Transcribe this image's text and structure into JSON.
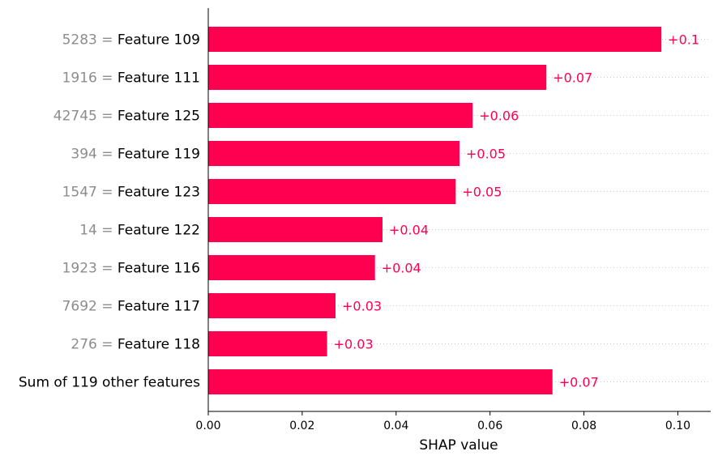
{
  "chart_data": {
    "type": "bar",
    "orientation": "horizontal",
    "xlabel": "SHAP value",
    "xlim": [
      0.0,
      0.107
    ],
    "xticks": [
      0.0,
      0.02,
      0.04,
      0.06,
      0.08,
      0.1
    ],
    "xtick_labels": [
      "0.00",
      "0.02",
      "0.04",
      "0.06",
      "0.08",
      "0.10"
    ],
    "bar_color": "#ff0051",
    "label_color": "#ff0051",
    "feature_value_color": "#8c8c8c",
    "categories": [
      {
        "feature_value": "5283",
        "feature": "Feature 109",
        "value": 0.0965,
        "label": "+0.1"
      },
      {
        "feature_value": "1916",
        "feature": "Feature 111",
        "value": 0.072,
        "label": "+0.07"
      },
      {
        "feature_value": "42745",
        "feature": "Feature 125",
        "value": 0.0563,
        "label": "+0.06"
      },
      {
        "feature_value": "394",
        "feature": "Feature 119",
        "value": 0.0535,
        "label": "+0.05"
      },
      {
        "feature_value": "1547",
        "feature": "Feature 123",
        "value": 0.0527,
        "label": "+0.05"
      },
      {
        "feature_value": "14",
        "feature": "Feature 122",
        "value": 0.0371,
        "label": "+0.04"
      },
      {
        "feature_value": "1923",
        "feature": "Feature 116",
        "value": 0.0355,
        "label": "+0.04"
      },
      {
        "feature_value": "7692",
        "feature": "Feature 117",
        "value": 0.0271,
        "label": "+0.03"
      },
      {
        "feature_value": "276",
        "feature": "Feature 118",
        "value": 0.0253,
        "label": "+0.03"
      },
      {
        "feature_value": "",
        "feature": "Sum of 119 other features",
        "value": 0.0733,
        "label": "+0.07"
      }
    ]
  }
}
